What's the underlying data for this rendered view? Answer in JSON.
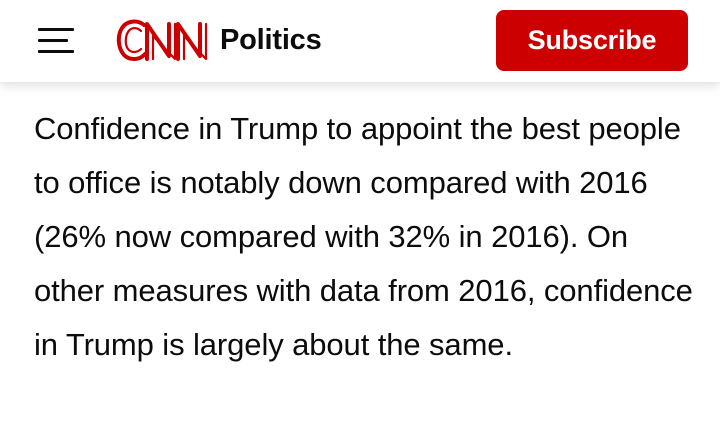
{
  "header": {
    "menu_icon": "hamburger-menu-icon",
    "logo_text": "CNN",
    "section": "Politics",
    "subscribe_label": "Subscribe",
    "colors": {
      "brand_red": "#cc0000",
      "text": "#0c0c0c",
      "background": "#ffffff"
    }
  },
  "article": {
    "paragraph": "Confidence in Trump to appoint the best people to office is notably down compared with 2016 (26% now compared with 32% in 2016). On other measures with data from 2016, confidence in Trump is largely about the same."
  }
}
